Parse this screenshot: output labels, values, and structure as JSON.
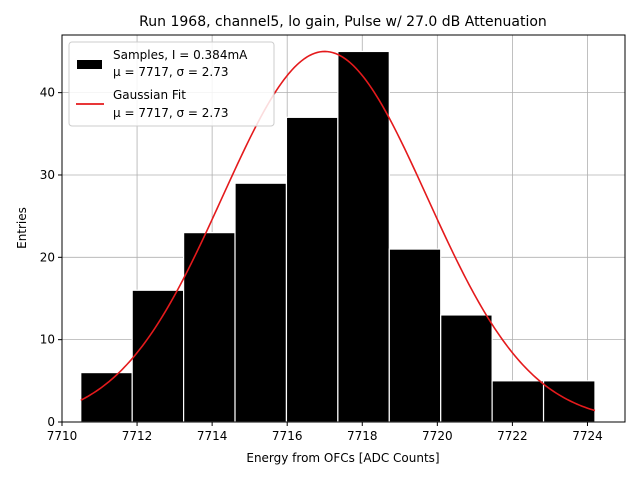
{
  "chart_data": {
    "type": "bar",
    "title": "Run 1968, channel5, lo gain, Pulse w/ 27.0 dB Attenuation",
    "xlabel": "Energy from OFCs [ADC Counts]",
    "ylabel": "Entries",
    "xlim": [
      7710,
      7725
    ],
    "ylim": [
      0,
      47
    ],
    "grid": true,
    "xticks": [
      7710,
      7712,
      7714,
      7716,
      7718,
      7720,
      7722,
      7724
    ],
    "yticks": [
      0,
      10,
      20,
      30,
      40
    ],
    "bin_edges": [
      7710.5,
      7711.87,
      7713.24,
      7714.61,
      7715.98,
      7717.35,
      7718.72,
      7720.09,
      7721.46,
      7722.83,
      7724.2
    ],
    "values": [
      6,
      16,
      23,
      29,
      37,
      45,
      21,
      13,
      5,
      5
    ],
    "series": [
      {
        "name": "Samples, I = 0.384mA",
        "sub": "μ = 7717, σ = 2.73",
        "color": "#000000",
        "kind": "histogram"
      },
      {
        "name": "Gaussian Fit",
        "sub": "μ = 7717, σ = 2.73",
        "color": "#e41a1c",
        "kind": "line",
        "mu": 7717,
        "sigma": 2.73,
        "amplitude": 45,
        "x_range": [
          7710.5,
          7724.2
        ]
      }
    ],
    "legend_position": "top-left"
  }
}
